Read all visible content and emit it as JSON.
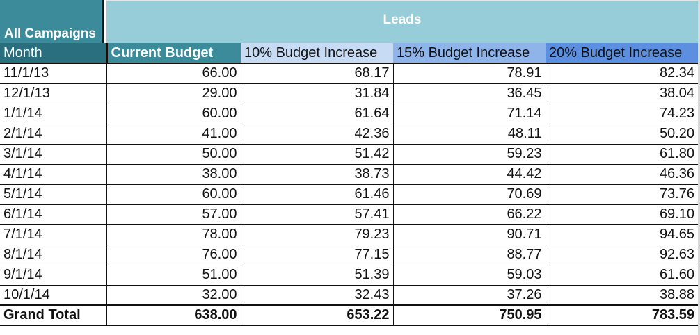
{
  "header": {
    "campaign_label": "All Campaigns",
    "group_label": "Leads"
  },
  "columns": {
    "month": "Month",
    "current": "Current Budget",
    "inc10": "10% Budget Increase",
    "inc15": "15% Budget Increase",
    "inc20": "20% Budget Increase"
  },
  "rows": [
    {
      "month": "11/1/13",
      "current": "66.00",
      "inc10": "68.17",
      "inc15": "78.91",
      "inc20": "82.34"
    },
    {
      "month": "12/1/13",
      "current": "29.00",
      "inc10": "31.84",
      "inc15": "36.45",
      "inc20": "38.04"
    },
    {
      "month": "1/1/14",
      "current": "60.00",
      "inc10": "61.64",
      "inc15": "71.14",
      "inc20": "74.23"
    },
    {
      "month": "2/1/14",
      "current": "41.00",
      "inc10": "42.36",
      "inc15": "48.11",
      "inc20": "50.20"
    },
    {
      "month": "3/1/14",
      "current": "50.00",
      "inc10": "51.42",
      "inc15": "59.23",
      "inc20": "61.80"
    },
    {
      "month": "4/1/14",
      "current": "38.00",
      "inc10": "38.73",
      "inc15": "44.42",
      "inc20": "46.36"
    },
    {
      "month": "5/1/14",
      "current": "60.00",
      "inc10": "61.46",
      "inc15": "70.69",
      "inc20": "73.76"
    },
    {
      "month": "6/1/14",
      "current": "57.00",
      "inc10": "57.41",
      "inc15": "66.22",
      "inc20": "69.10"
    },
    {
      "month": "7/1/14",
      "current": "78.00",
      "inc10": "79.23",
      "inc15": "90.71",
      "inc20": "94.65"
    },
    {
      "month": "8/1/14",
      "current": "76.00",
      "inc10": "77.15",
      "inc15": "88.77",
      "inc20": "92.63"
    },
    {
      "month": "9/1/14",
      "current": "51.00",
      "inc10": "51.39",
      "inc15": "59.03",
      "inc20": "61.60"
    },
    {
      "month": "10/1/14",
      "current": "32.00",
      "inc10": "32.43",
      "inc15": "37.26",
      "inc20": "38.88"
    }
  ],
  "total": {
    "month": "Grand Total",
    "current": "638.00",
    "inc10": "653.22",
    "inc15": "750.95",
    "inc20": "783.59"
  },
  "colors": {
    "dark_teal": "#2a6f7e",
    "teal": "#3b8b9a",
    "light_teal": "#96cdd9",
    "light_blue": "#c7dbf5",
    "mid_blue": "#8fb4ea",
    "blue": "#5c8fdf"
  }
}
